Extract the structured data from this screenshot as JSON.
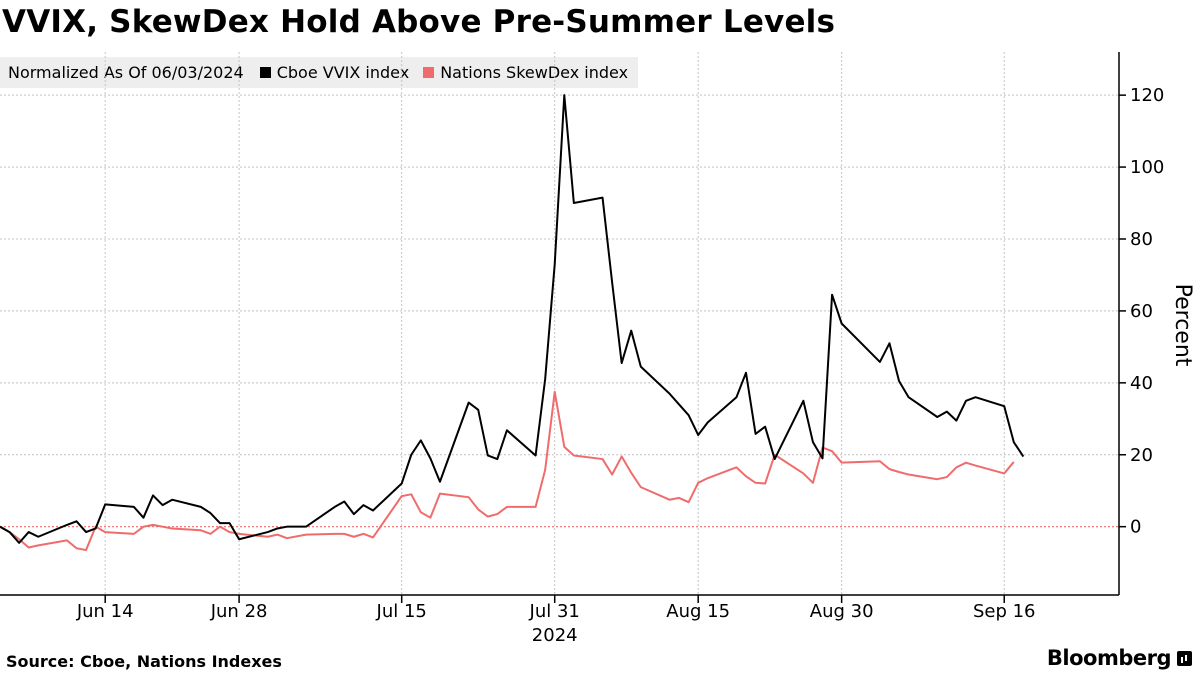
{
  "title": "VVIX, SkewDex Hold Above Pre-Summer Levels",
  "legend": {
    "note": "Normalized As Of 06/03/2024",
    "entries": [
      {
        "label": "Cboe VVIX index",
        "color": "#000000"
      },
      {
        "label": "Nations SkewDex index",
        "color": "#f06c6c"
      }
    ]
  },
  "source": "Source: Cboe, Nations Indexes",
  "brand": {
    "name": "Bloomberg",
    "icon": "bloomberg-terminal-icon"
  },
  "chart_data": {
    "type": "line",
    "ylabel": "Percent",
    "ylim": [
      -19,
      132
    ],
    "yticks": [
      0,
      20,
      40,
      60,
      80,
      100,
      120
    ],
    "xlim": [
      "2024-06-03",
      "2024-09-28"
    ],
    "xticks": [
      {
        "date": "2024-06-14",
        "label": "Jun 14"
      },
      {
        "date": "2024-06-28",
        "label": "Jun 28"
      },
      {
        "date": "2024-07-15",
        "label": "Jul 15"
      },
      {
        "date": "2024-07-31",
        "label": "Jul 31"
      },
      {
        "date": "2024-08-15",
        "label": "Aug 15"
      },
      {
        "date": "2024-08-30",
        "label": "Aug 30"
      },
      {
        "date": "2024-09-16",
        "label": "Sep 16"
      }
    ],
    "year_label": {
      "text": "2024",
      "under": "2024-07-31"
    },
    "zero_line_color": "#f06c6c",
    "grid": true,
    "series": [
      {
        "name": "Cboe VVIX index",
        "color": "#000000",
        "points": [
          [
            "2024-06-03",
            0
          ],
          [
            "2024-06-04",
            -1.5
          ],
          [
            "2024-06-05",
            -4.5
          ],
          [
            "2024-06-06",
            -1.5
          ],
          [
            "2024-06-07",
            -2.8
          ],
          [
            "2024-06-10",
            0.5
          ],
          [
            "2024-06-11",
            1.5
          ],
          [
            "2024-06-12",
            -1.5
          ],
          [
            "2024-06-13",
            -0.5
          ],
          [
            "2024-06-14",
            6.2
          ],
          [
            "2024-06-17",
            5.5
          ],
          [
            "2024-06-18",
            2.5
          ],
          [
            "2024-06-19",
            8.7
          ],
          [
            "2024-06-20",
            6
          ],
          [
            "2024-06-21",
            7.5
          ],
          [
            "2024-06-24",
            5.5
          ],
          [
            "2024-06-25",
            3.8
          ],
          [
            "2024-06-26",
            1
          ],
          [
            "2024-06-27",
            1
          ],
          [
            "2024-06-28",
            -3.5
          ],
          [
            "2024-07-01",
            -1.5
          ],
          [
            "2024-07-02",
            -0.5
          ],
          [
            "2024-07-03",
            0
          ],
          [
            "2024-07-05",
            0
          ],
          [
            "2024-07-08",
            5.5
          ],
          [
            "2024-07-09",
            7
          ],
          [
            "2024-07-10",
            3.5
          ],
          [
            "2024-07-11",
            6
          ],
          [
            "2024-07-12",
            4.5
          ],
          [
            "2024-07-15",
            12
          ],
          [
            "2024-07-16",
            20
          ],
          [
            "2024-07-17",
            24
          ],
          [
            "2024-07-18",
            19
          ],
          [
            "2024-07-19",
            12.5
          ],
          [
            "2024-07-22",
            34.5
          ],
          [
            "2024-07-23",
            32.5
          ],
          [
            "2024-07-24",
            19.8
          ],
          [
            "2024-07-25",
            18.8
          ],
          [
            "2024-07-26",
            26.8
          ],
          [
            "2024-07-29",
            19.8
          ],
          [
            "2024-07-30",
            41
          ],
          [
            "2024-07-31",
            73
          ],
          [
            "2024-08-01",
            120
          ],
          [
            "2024-08-02",
            90
          ],
          [
            "2024-08-05",
            91.5
          ],
          [
            "2024-08-06",
            68
          ],
          [
            "2024-08-07",
            45.5
          ],
          [
            "2024-08-08",
            54.5
          ],
          [
            "2024-08-09",
            44.5
          ],
          [
            "2024-08-12",
            37
          ],
          [
            "2024-08-13",
            34
          ],
          [
            "2024-08-14",
            31
          ],
          [
            "2024-08-15",
            25.5
          ],
          [
            "2024-08-16",
            29
          ],
          [
            "2024-08-19",
            36
          ],
          [
            "2024-08-20",
            42.8
          ],
          [
            "2024-08-21",
            25.8
          ],
          [
            "2024-08-22",
            27.8
          ],
          [
            "2024-08-23",
            18.8
          ],
          [
            "2024-08-26",
            35
          ],
          [
            "2024-08-27",
            23.5
          ],
          [
            "2024-08-28",
            19
          ],
          [
            "2024-08-29",
            64.5
          ],
          [
            "2024-08-30",
            56.5
          ],
          [
            "2024-09-03",
            45.8
          ],
          [
            "2024-09-04",
            51
          ],
          [
            "2024-09-05",
            40.5
          ],
          [
            "2024-09-06",
            36
          ],
          [
            "2024-09-09",
            30.5
          ],
          [
            "2024-09-10",
            32
          ],
          [
            "2024-09-11",
            29.5
          ],
          [
            "2024-09-12",
            35
          ],
          [
            "2024-09-13",
            36
          ],
          [
            "2024-09-16",
            33.5
          ],
          [
            "2024-09-17",
            23.5
          ],
          [
            "2024-09-18",
            19.5
          ]
        ]
      },
      {
        "name": "Nations SkewDex index",
        "color": "#f06c6c",
        "points": [
          [
            "2024-06-03",
            0
          ],
          [
            "2024-06-04",
            -1.5
          ],
          [
            "2024-06-05",
            -3.5
          ],
          [
            "2024-06-06",
            -5.8
          ],
          [
            "2024-06-07",
            -5.2
          ],
          [
            "2024-06-10",
            -3.8
          ],
          [
            "2024-06-11",
            -6
          ],
          [
            "2024-06-12",
            -6.5
          ],
          [
            "2024-06-13",
            0
          ],
          [
            "2024-06-14",
            -1.5
          ],
          [
            "2024-06-17",
            -2
          ],
          [
            "2024-06-18",
            0
          ],
          [
            "2024-06-19",
            0.5
          ],
          [
            "2024-06-20",
            0
          ],
          [
            "2024-06-21",
            -0.5
          ],
          [
            "2024-06-24",
            -1
          ],
          [
            "2024-06-25",
            -2
          ],
          [
            "2024-06-26",
            0
          ],
          [
            "2024-06-27",
            -1.5
          ],
          [
            "2024-06-28",
            -2
          ],
          [
            "2024-07-01",
            -2.8
          ],
          [
            "2024-07-02",
            -2.2
          ],
          [
            "2024-07-03",
            -3.2
          ],
          [
            "2024-07-05",
            -2.2
          ],
          [
            "2024-07-08",
            -2
          ],
          [
            "2024-07-09",
            -2
          ],
          [
            "2024-07-10",
            -2.8
          ],
          [
            "2024-07-11",
            -2
          ],
          [
            "2024-07-12",
            -3
          ],
          [
            "2024-07-15",
            8.5
          ],
          [
            "2024-07-16",
            9
          ],
          [
            "2024-07-17",
            4
          ],
          [
            "2024-07-18",
            2.5
          ],
          [
            "2024-07-19",
            9.2
          ],
          [
            "2024-07-22",
            8.2
          ],
          [
            "2024-07-23",
            4.8
          ],
          [
            "2024-07-24",
            2.8
          ],
          [
            "2024-07-25",
            3.5
          ],
          [
            "2024-07-26",
            5.5
          ],
          [
            "2024-07-29",
            5.5
          ],
          [
            "2024-07-30",
            15.8
          ],
          [
            "2024-07-31",
            37.5
          ],
          [
            "2024-08-01",
            22.2
          ],
          [
            "2024-08-02",
            19.8
          ],
          [
            "2024-08-05",
            18.8
          ],
          [
            "2024-08-06",
            14.5
          ],
          [
            "2024-08-07",
            19.5
          ],
          [
            "2024-08-08",
            15
          ],
          [
            "2024-08-09",
            11
          ],
          [
            "2024-08-12",
            7.5
          ],
          [
            "2024-08-13",
            8
          ],
          [
            "2024-08-14",
            6.8
          ],
          [
            "2024-08-15",
            12.2
          ],
          [
            "2024-08-16",
            13.5
          ],
          [
            "2024-08-19",
            16.5
          ],
          [
            "2024-08-20",
            14
          ],
          [
            "2024-08-21",
            12.2
          ],
          [
            "2024-08-22",
            12
          ],
          [
            "2024-08-23",
            20
          ],
          [
            "2024-08-26",
            14.8
          ],
          [
            "2024-08-27",
            12.2
          ],
          [
            "2024-08-28",
            22
          ],
          [
            "2024-08-29",
            21
          ],
          [
            "2024-08-30",
            17.8
          ],
          [
            "2024-09-03",
            18.2
          ],
          [
            "2024-09-04",
            16
          ],
          [
            "2024-09-05",
            15.2
          ],
          [
            "2024-09-06",
            14.5
          ],
          [
            "2024-09-09",
            13.2
          ],
          [
            "2024-09-10",
            13.8
          ],
          [
            "2024-09-11",
            16.5
          ],
          [
            "2024-09-12",
            17.8
          ],
          [
            "2024-09-13",
            17
          ],
          [
            "2024-09-16",
            14.8
          ],
          [
            "2024-09-17",
            18
          ]
        ]
      }
    ]
  }
}
